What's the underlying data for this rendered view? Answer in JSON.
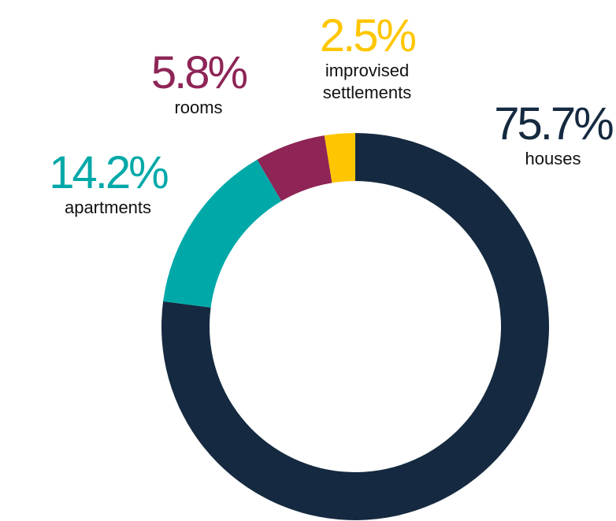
{
  "chart_data": {
    "type": "donut",
    "categories": [
      "houses",
      "apartments",
      "rooms",
      "improvised settlements"
    ],
    "values": [
      75.7,
      14.2,
      5.8,
      2.5
    ],
    "value_labels": [
      "75.7%",
      "14.2%",
      "5.8%",
      "2.5%"
    ],
    "colors": [
      "#152a40",
      "#00a9a8",
      "#8e2556",
      "#fec600"
    ]
  }
}
